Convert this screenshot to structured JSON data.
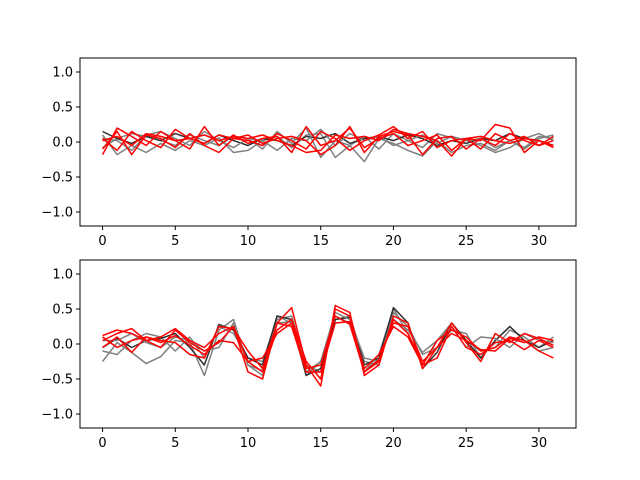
{
  "chart_data": [
    {
      "type": "line",
      "xlim": [
        -1.55,
        32.55
      ],
      "ylim": [
        -1.2,
        1.2
      ],
      "xticks": [
        0,
        5,
        10,
        15,
        20,
        25,
        30
      ],
      "yticks": [
        -1.0,
        -0.5,
        0.0,
        0.5,
        1.0
      ],
      "ytick_labels": [
        "−1.0",
        "−0.5",
        "0.0",
        "0.5",
        "1.0"
      ],
      "grid": false,
      "colors": {
        "gray": "#808080",
        "dark": "#303030",
        "red": "#ff0000"
      },
      "series": [
        {
          "color": "gray",
          "values": [
            0.1,
            -0.18,
            -0.05,
            -0.15,
            -0.02,
            -0.12,
            0.02,
            -0.05,
            0.06,
            -0.15,
            -0.12,
            0.02,
            0.08,
            -0.08,
            0.1,
            0.12,
            -0.22,
            -0.05,
            -0.28,
            0.05,
            -0.02,
            -0.12,
            -0.2,
            0.02,
            -0.15,
            -0.05,
            -0.02,
            -0.12,
            0.02,
            -0.08,
            0.08,
            0.05
          ]
        },
        {
          "color": "gray",
          "values": [
            -0.08,
            0.05,
            0.12,
            0.08,
            0.02,
            -0.05,
            0.1,
            0.02,
            -0.05,
            0.08,
            0.05,
            -0.1,
            0.15,
            -0.02,
            0.2,
            -0.22,
            0.02,
            -0.05,
            0.08,
            -0.1,
            0.12,
            0.02,
            -0.08,
            0.12,
            0.06,
            0.02,
            -0.05,
            -0.15,
            -0.08,
            0.05,
            0.12,
            0.02
          ]
        },
        {
          "color": "dark",
          "values": [
            0.15,
            0.05,
            -0.02,
            0.08,
            0.02,
            0.12,
            0.05,
            -0.02,
            0.1,
            0.02,
            -0.05,
            0.05,
            0.02,
            -0.05,
            0.08,
            0.05,
            0.12,
            -0.02,
            0.05,
            0.08,
            0.02,
            0.1,
            0.05,
            -0.05,
            0.02,
            -0.02,
            0.05,
            0.02,
            0.12,
            0.05,
            0.02,
            -0.05
          ]
        },
        {
          "color": "gray",
          "values": [
            0.05,
            0.02,
            -0.12,
            0.1,
            0.15,
            0.05,
            -0.05,
            0.15,
            0.02,
            -0.08,
            0.05,
            0.02,
            -0.12,
            0.05,
            0.02,
            0.18,
            -0.05,
            0.12,
            0.02,
            0.08,
            -0.05,
            0.02,
            0.1,
            -0.02,
            0.08,
            0.02,
            0.05,
            -0.08,
            0.02,
            -0.1,
            0.05,
            0.1
          ]
        },
        {
          "color": "red",
          "values": [
            -0.18,
            0.2,
            0.08,
            -0.05,
            0.15,
            0.02,
            -0.1,
            0.22,
            -0.05,
            0.1,
            -0.02,
            0.05,
            0.08,
            -0.15,
            0.22,
            -0.05,
            0.02,
            0.2,
            -0.08,
            0.05,
            0.12,
            -0.05,
            0.02,
            0.1,
            -0.12,
            0.05,
            0.02,
            0.25,
            0.2,
            -0.15,
            0.02,
            -0.08
          ]
        },
        {
          "color": "red",
          "values": [
            0.05,
            -0.12,
            0.15,
            0.02,
            -0.08,
            0.18,
            0.05,
            -0.02,
            0.1,
            0.05,
            0.02,
            -0.05,
            0.12,
            0.02,
            -0.1,
            0.15,
            0.05,
            -0.12,
            0.02,
            0.1,
            0.22,
            0.05,
            0.15,
            -0.08,
            0.02,
            0.05,
            -0.1,
            0.12,
            0.02,
            0.08,
            -0.05,
            0.02
          ]
        },
        {
          "color": "red",
          "values": [
            -0.1,
            0.15,
            -0.18,
            0.1,
            0.05,
            -0.08,
            0.12,
            -0.05,
            -0.15,
            0.05,
            0.1,
            -0.02,
            0.05,
            0.08,
            0.02,
            -0.18,
            -0.05,
            0.22,
            -0.15,
            0.08,
            0.15,
            0.1,
            -0.18,
            0.05,
            0.08,
            -0.1,
            0.05,
            -0.05,
            0.12,
            0.02,
            -0.05,
            0.08
          ]
        },
        {
          "color": "red",
          "values": [
            0.02,
            0.08,
            -0.05,
            0.12,
            0.08,
            0.02,
            0.05,
            0.1,
            0.02,
            0.08,
            0.05,
            0.1,
            0.02,
            -0.05,
            -0.15,
            -0.12,
            0.1,
            0.05,
            0.08,
            0.02,
            0.18,
            0.12,
            0.08,
            0.02,
            -0.2,
            0.05,
            0.08,
            0.02,
            -0.02,
            0.05,
            0.02,
            -0.05
          ]
        }
      ]
    },
    {
      "type": "line",
      "xlim": [
        -1.55,
        32.55
      ],
      "ylim": [
        -1.2,
        1.2
      ],
      "xticks": [
        0,
        5,
        10,
        15,
        20,
        25,
        30
      ],
      "yticks": [
        -1.0,
        -0.5,
        0.0,
        0.5,
        1.0
      ],
      "ytick_labels": [
        "−1.0",
        "−0.5",
        "0.0",
        "0.5",
        "1.0"
      ],
      "grid": false,
      "colors": {
        "gray": "#808080",
        "dark": "#303030",
        "red": "#ff0000"
      },
      "series": [
        {
          "color": "gray",
          "values": [
            -0.25,
            0.02,
            -0.12,
            -0.28,
            -0.18,
            0.05,
            0.02,
            -0.45,
            0.2,
            0.35,
            -0.3,
            -0.45,
            0.4,
            0.3,
            -0.45,
            -0.25,
            0.4,
            0.3,
            -0.4,
            -0.15,
            0.5,
            0.15,
            -0.3,
            0.05,
            0.3,
            0.05,
            -0.1,
            -0.05,
            0.2,
            0.1,
            -0.05,
            0.1
          ]
        },
        {
          "color": "gray",
          "values": [
            -0.1,
            -0.15,
            0.05,
            0.15,
            0.1,
            -0.1,
            0.1,
            -0.2,
            0.25,
            0.15,
            -0.2,
            -0.25,
            0.35,
            0.4,
            -0.3,
            -0.4,
            0.35,
            0.4,
            -0.25,
            -0.3,
            0.45,
            0.25,
            -0.15,
            -0.05,
            0.2,
            0.15,
            -0.2,
            0.05,
            0.25,
            0.05,
            -0.1,
            -0.05
          ]
        },
        {
          "color": "dark",
          "values": [
            -0.05,
            0.08,
            -0.05,
            0.05,
            0.08,
            0.15,
            -0.05,
            -0.3,
            0.28,
            0.2,
            -0.2,
            -0.3,
            0.4,
            0.35,
            -0.45,
            -0.35,
            0.35,
            0.38,
            -0.3,
            -0.2,
            0.52,
            0.3,
            -0.35,
            -0.12,
            0.3,
            0.05,
            -0.2,
            0.05,
            0.25,
            0.05,
            -0.05,
            0.05
          ]
        },
        {
          "color": "gray",
          "values": [
            0.05,
            0.05,
            0.15,
            0.02,
            -0.05,
            0.1,
            0.05,
            -0.1,
            -0.05,
            0.3,
            -0.3,
            -0.38,
            0.3,
            0.32,
            -0.4,
            -0.25,
            0.45,
            0.35,
            -0.2,
            -0.25,
            0.35,
            0.2,
            -0.12,
            0.05,
            0.25,
            -0.05,
            0.1,
            0.08,
            -0.05,
            0.15,
            0.05,
            0.02
          ]
        },
        {
          "color": "red",
          "values": [
            0.12,
            0.2,
            0.15,
            0.05,
            -0.05,
            0.2,
            0.02,
            -0.1,
            0.02,
            0.25,
            -0.4,
            -0.5,
            0.3,
            0.52,
            -0.3,
            -0.6,
            0.55,
            0.45,
            -0.45,
            -0.3,
            0.4,
            0.3,
            -0.35,
            -0.05,
            0.3,
            0.02,
            -0.25,
            0.15,
            0.02,
            0.15,
            0.08,
            -0.02
          ]
        },
        {
          "color": "red",
          "values": [
            0.05,
            0.15,
            0.22,
            0.05,
            0.1,
            0.22,
            0.05,
            -0.05,
            0.15,
            0.25,
            -0.25,
            -0.4,
            0.2,
            0.35,
            -0.25,
            -0.5,
            0.5,
            0.4,
            -0.4,
            -0.25,
            0.35,
            0.15,
            -0.3,
            0.05,
            0.2,
            0.1,
            -0.1,
            -0.05,
            0.1,
            0.05,
            -0.1,
            -0.2
          ]
        },
        {
          "color": "red",
          "values": [
            -0.05,
            0.1,
            -0.12,
            0.1,
            0.05,
            0.02,
            -0.15,
            -0.2,
            0.25,
            0.22,
            -0.1,
            -0.35,
            0.3,
            0.25,
            -0.4,
            -0.4,
            0.3,
            0.32,
            -0.35,
            -0.15,
            0.25,
            0.1,
            -0.3,
            -0.2,
            0.25,
            -0.05,
            -0.15,
            0.02,
            0.05,
            -0.08,
            0.05,
            -0.05
          ]
        },
        {
          "color": "red",
          "values": [
            0.1,
            -0.05,
            0.05,
            0.1,
            0.02,
            0.12,
            -0.02,
            -0.15,
            0.05,
            0.02,
            -0.25,
            -0.2,
            0.15,
            0.3,
            -0.35,
            -0.3,
            0.4,
            0.28,
            -0.4,
            -0.22,
            0.3,
            0.25,
            -0.25,
            -0.05,
            0.15,
            0.05,
            -0.08,
            -0.1,
            0.08,
            0.02,
            0.1,
            0.05
          ]
        }
      ]
    }
  ]
}
